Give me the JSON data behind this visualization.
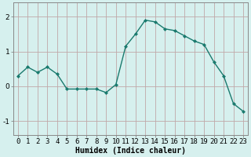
{
  "x": [
    0,
    1,
    2,
    3,
    4,
    5,
    6,
    7,
    8,
    9,
    10,
    11,
    12,
    13,
    14,
    15,
    16,
    17,
    18,
    19,
    20,
    21,
    22,
    23
  ],
  "y": [
    0.3,
    0.55,
    0.4,
    0.55,
    0.35,
    -0.08,
    -0.08,
    -0.08,
    -0.08,
    -0.18,
    0.05,
    1.15,
    1.5,
    1.9,
    1.85,
    1.65,
    1.6,
    1.45,
    1.3,
    1.2,
    0.7,
    0.3,
    -0.5,
    -0.72
  ],
  "line_color": "#1a7a6e",
  "marker": "D",
  "markersize": 2,
  "linewidth": 1.0,
  "background_color": "#d6f0ee",
  "grid_color": "#c0a8a8",
  "xlabel": "Humidex (Indice chaleur)",
  "xlabel_fontsize": 7,
  "xlabel_fontweight": "bold",
  "yticks": [
    -1,
    0,
    1,
    2
  ],
  "xlim": [
    -0.5,
    23.5
  ],
  "ylim": [
    -1.4,
    2.4
  ],
  "tick_fontsize": 6.5,
  "spine_color": "#888888"
}
